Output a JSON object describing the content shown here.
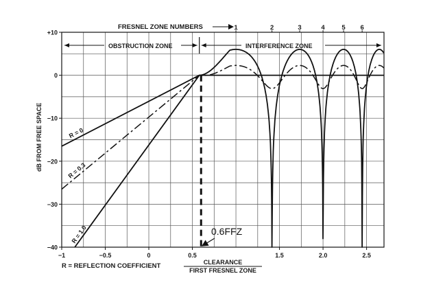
{
  "chart_data": {
    "type": "line",
    "ylabel": "dB FROM FREE SPACE",
    "xlabel_top": "CLEARANCE",
    "xlabel_bottom": "FIRST FRESNEL ZONE",
    "legend_note": "R = REFLECTION COEFFICIENT",
    "fresnel_header": "FRESNEL ZONE NUMBERS",
    "zones": {
      "obstruction": "OBSTRUCTION ZONE",
      "interference": "INTERFERENCE ZONE"
    },
    "annotation": "0.6FFZ",
    "xlim": [
      -1,
      2.7
    ],
    "ylim": [
      -40,
      10
    ],
    "x_ticks": [
      {
        "v": -1,
        "t": "−1"
      },
      {
        "v": -0.5,
        "t": "−0.5"
      },
      {
        "v": 0,
        "t": "0"
      },
      {
        "v": 0.5,
        "t": "0.5"
      },
      {
        "v": 1.5,
        "t": "1.5"
      },
      {
        "v": 2.0,
        "t": "2.0"
      },
      {
        "v": 2.5,
        "t": "2.5"
      }
    ],
    "y_ticks": [
      {
        "v": 10,
        "t": "+10"
      },
      {
        "v": 0,
        "t": "0"
      },
      {
        "v": -10,
        "t": "−10"
      },
      {
        "v": -20,
        "t": "−20"
      },
      {
        "v": -30,
        "t": "−30"
      },
      {
        "v": -40,
        "t": "−40"
      }
    ],
    "fresnel_zone_numbers": [
      {
        "n": "1",
        "x": 1.0
      },
      {
        "n": "2",
        "x": 1.414
      },
      {
        "n": "3",
        "x": 1.732
      },
      {
        "n": "4",
        "x": 2.0
      },
      {
        "n": "5",
        "x": 2.236
      },
      {
        "n": "6",
        "x": 2.449
      }
    ],
    "grid_x": [
      -0.75,
      -0.5,
      -0.25,
      0,
      0.25,
      0.5,
      0.75,
      1.0,
      1.25,
      1.5,
      1.75,
      2.0,
      2.25,
      2.5
    ],
    "grid_y": [
      5,
      0,
      -5,
      -10,
      -15,
      -20,
      -25,
      -30,
      -35
    ],
    "series": [
      {
        "name": "R = 0",
        "style": "solid",
        "R": 0,
        "left": [
          [
            -1,
            -16.5
          ],
          [
            0.58,
            0
          ]
        ]
      },
      {
        "name": "R = 0.3",
        "style": "dashdot",
        "R": 0.3,
        "left": [
          [
            -1,
            -26.5
          ],
          [
            0.58,
            0
          ]
        ]
      },
      {
        "name": "R = 1.0",
        "style": "solid",
        "R": 1.0,
        "left": [
          [
            -0.85,
            -40
          ],
          [
            0.58,
            0
          ]
        ]
      }
    ],
    "clearance_marker_x": 0.6
  }
}
